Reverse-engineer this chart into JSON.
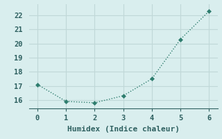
{
  "x": [
    0,
    1,
    2,
    3,
    4,
    5,
    6
  ],
  "y": [
    17.1,
    15.9,
    15.8,
    16.3,
    17.5,
    20.3,
    22.3
  ],
  "line_color": "#2e7d6e",
  "marker": "D",
  "marker_size": 3,
  "bg_color": "#d9eeee",
  "grid_color": "#c0d8d8",
  "xlabel": "Humidex (Indice chaleur)",
  "xlim": [
    -0.3,
    6.3
  ],
  "ylim": [
    15.4,
    22.8
  ],
  "xticks": [
    0,
    1,
    2,
    3,
    4,
    5,
    6
  ],
  "yticks": [
    16,
    17,
    18,
    19,
    20,
    21,
    22
  ],
  "xlabel_fontsize": 8,
  "tick_fontsize": 7.5,
  "font_color": "#2e6060"
}
